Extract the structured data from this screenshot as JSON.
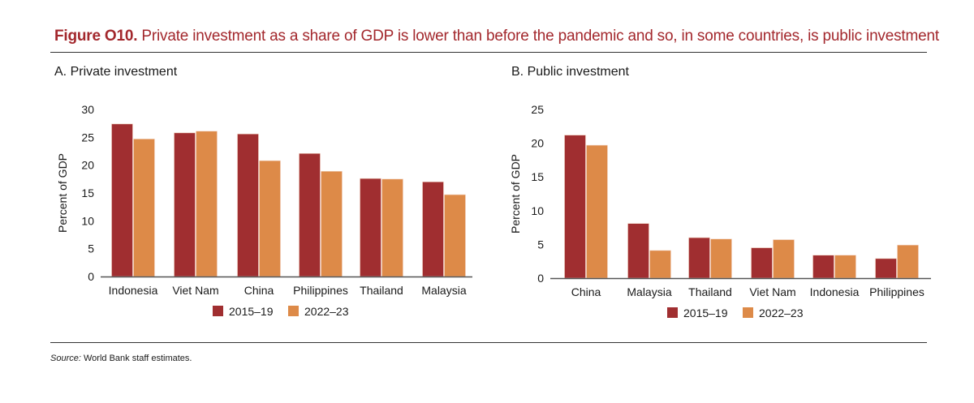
{
  "figure": {
    "label": "Figure O10.",
    "title": "Private investment as a share of GDP is lower than before the pandemic and so, in some countries, is public investment",
    "source_label": "Source:",
    "source_text": "World Bank staff estimates."
  },
  "colors": {
    "series1": "#a02e30",
    "series2": "#dd8a48",
    "axis": "#555555"
  },
  "chart_data": [
    {
      "type": "bar",
      "title": "A. Private investment",
      "xlabel": "",
      "ylabel": "Percent of GDP",
      "ylim": [
        0,
        30
      ],
      "yticks": [
        0,
        5,
        10,
        15,
        20,
        25,
        30
      ],
      "grid": false,
      "legend_position": "bottom",
      "categories": [
        "Indonesia",
        "Viet Nam",
        "China",
        "Philippines",
        "Thailand",
        "Malaysia"
      ],
      "series": [
        {
          "name": "2015–19",
          "values": [
            27.4,
            25.8,
            25.6,
            22.1,
            17.6,
            17.0
          ]
        },
        {
          "name": "2022–23",
          "values": [
            24.7,
            26.1,
            20.8,
            18.9,
            17.5,
            14.7
          ]
        }
      ]
    },
    {
      "type": "bar",
      "title": "B. Public investment",
      "xlabel": "",
      "ylabel": "Percent of GDP",
      "ylim": [
        0,
        25
      ],
      "yticks": [
        0,
        5,
        10,
        15,
        20,
        25
      ],
      "grid": false,
      "legend_position": "bottom",
      "categories": [
        "China",
        "Malaysia",
        "Thailand",
        "Viet Nam",
        "Indonesia",
        "Philippines"
      ],
      "series": [
        {
          "name": "2015–19",
          "values": [
            21.2,
            8.1,
            6.0,
            4.5,
            3.4,
            2.9
          ]
        },
        {
          "name": "2022–23",
          "values": [
            19.7,
            4.1,
            5.8,
            5.7,
            3.4,
            4.9
          ]
        }
      ]
    }
  ]
}
